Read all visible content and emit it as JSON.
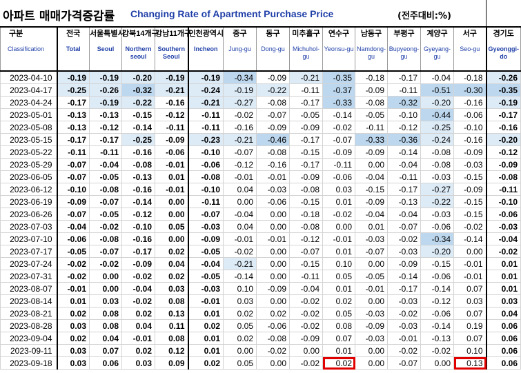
{
  "title": {
    "korean": "아파트 매매가격증감률",
    "english": "Changing Rate of Apartment Purchase Price",
    "unit": "(전주대비:%)"
  },
  "columns": [
    {
      "key": "date",
      "ko": "구분",
      "en": "Classification"
    },
    {
      "key": "total",
      "ko": "전국",
      "en": "Total"
    },
    {
      "key": "seoul",
      "ko": "서울특별시",
      "en": "Seoul"
    },
    {
      "key": "north",
      "ko": "강북14개구",
      "en": "Northern seoul"
    },
    {
      "key": "south",
      "ko": "강남11개구",
      "en": "Southern Seoul"
    },
    {
      "key": "incheon",
      "ko": "인천광역시",
      "en": "Incheon"
    },
    {
      "key": "jung",
      "ko": "중구",
      "en": "Jung-gu"
    },
    {
      "key": "dong",
      "ko": "동구",
      "en": "Dong-gu"
    },
    {
      "key": "michuhol",
      "ko": "미추홀구",
      "en": "Michuhol-gu"
    },
    {
      "key": "yeonsu",
      "ko": "연수구",
      "en": "Yeonsu-gu"
    },
    {
      "key": "namdong",
      "ko": "남동구",
      "en": "Namdong-gu"
    },
    {
      "key": "bupyeong",
      "ko": "부평구",
      "en": "Bupyeong-gu"
    },
    {
      "key": "gyeyang",
      "ko": "계양구",
      "en": "Gyeyang-gu"
    },
    {
      "key": "seo",
      "ko": "서구",
      "en": "Seo-gu"
    },
    {
      "key": "gyeonggi",
      "ko": "경기도",
      "en": "Gyeonggi-do"
    }
  ],
  "rows": [
    [
      "2023-04-10",
      "-0.19",
      "-0.19",
      "-0.20",
      "-0.19",
      "-0.19",
      "-0.34",
      "-0.09",
      "-0.21",
      "-0.35",
      "-0.18",
      "-0.17",
      "-0.04",
      "-0.18",
      "-0.26"
    ],
    [
      "2023-04-17",
      "-0.25",
      "-0.26",
      "-0.32",
      "-0.21",
      "-0.24",
      "-0.19",
      "-0.22",
      "-0.11",
      "-0.37",
      "-0.09",
      "-0.11",
      "-0.51",
      "-0.30",
      "-0.35"
    ],
    [
      "2023-04-24",
      "-0.17",
      "-0.19",
      "-0.22",
      "-0.16",
      "-0.21",
      "-0.27",
      "-0.08",
      "-0.17",
      "-0.33",
      "-0.08",
      "-0.32",
      "-0.20",
      "-0.16",
      "-0.19"
    ],
    [
      "2023-05-01",
      "-0.13",
      "-0.13",
      "-0.15",
      "-0.12",
      "-0.11",
      "-0.02",
      "-0.07",
      "-0.05",
      "-0.14",
      "-0.05",
      "-0.10",
      "-0.44",
      "-0.06",
      "-0.17"
    ],
    [
      "2023-05-08",
      "-0.13",
      "-0.12",
      "-0.14",
      "-0.11",
      "-0.11",
      "-0.16",
      "-0.09",
      "-0.09",
      "-0.02",
      "-0.11",
      "-0.12",
      "-0.25",
      "-0.10",
      "-0.16"
    ],
    [
      "2023-05-15",
      "-0.17",
      "-0.17",
      "-0.25",
      "-0.09",
      "-0.23",
      "-0.21",
      "-0.46",
      "-0.17",
      "-0.07",
      "-0.33",
      "-0.36",
      "-0.24",
      "-0.16",
      "-0.20"
    ],
    [
      "2023-05-22",
      "-0.11",
      "-0.11",
      "-0.16",
      "-0.06",
      "-0.10",
      "-0.07",
      "-0.08",
      "-0.15",
      "-0.09",
      "-0.09",
      "-0.14",
      "-0.08",
      "-0.09",
      "-0.12"
    ],
    [
      "2023-05-29",
      "-0.07",
      "-0.04",
      "-0.08",
      "-0.01",
      "-0.06",
      "-0.12",
      "-0.16",
      "-0.17",
      "-0.11",
      "0.00",
      "-0.04",
      "-0.08",
      "-0.03",
      "-0.09"
    ],
    [
      "2023-06-05",
      "-0.07",
      "-0.05",
      "-0.13",
      "0.01",
      "-0.08",
      "-0.01",
      "-0.01",
      "-0.09",
      "-0.06",
      "-0.04",
      "-0.11",
      "-0.03",
      "-0.15",
      "-0.08"
    ],
    [
      "2023-06-12",
      "-0.10",
      "-0.08",
      "-0.16",
      "-0.01",
      "-0.10",
      "0.04",
      "-0.03",
      "-0.08",
      "0.03",
      "-0.15",
      "-0.17",
      "-0.27",
      "-0.09",
      "-0.11"
    ],
    [
      "2023-06-19",
      "-0.09",
      "-0.07",
      "-0.14",
      "0.00",
      "-0.11",
      "0.00",
      "-0.06",
      "-0.15",
      "0.01",
      "-0.09",
      "-0.13",
      "-0.22",
      "-0.15",
      "-0.10"
    ],
    [
      "2023-06-26",
      "-0.07",
      "-0.05",
      "-0.12",
      "0.00",
      "-0.07",
      "-0.04",
      "0.00",
      "-0.18",
      "-0.02",
      "-0.04",
      "-0.04",
      "-0.03",
      "-0.15",
      "-0.06"
    ],
    [
      "2023-07-03",
      "-0.04",
      "-0.02",
      "-0.10",
      "0.05",
      "-0.03",
      "0.04",
      "0.00",
      "-0.08",
      "0.00",
      "0.01",
      "-0.07",
      "-0.06",
      "-0.02",
      "-0.03"
    ],
    [
      "2023-07-10",
      "-0.06",
      "-0.08",
      "-0.16",
      "0.00",
      "-0.09",
      "-0.01",
      "-0.01",
      "-0.12",
      "-0.01",
      "-0.03",
      "-0.02",
      "-0.34",
      "-0.14",
      "-0.04"
    ],
    [
      "2023-07-17",
      "-0.05",
      "-0.07",
      "-0.17",
      "0.02",
      "-0.05",
      "-0.02",
      "0.00",
      "-0.07",
      "0.01",
      "-0.07",
      "-0.03",
      "-0.20",
      "0.00",
      "-0.02"
    ],
    [
      "2023-07-24",
      "-0.02",
      "-0.02",
      "-0.09",
      "0.04",
      "-0.04",
      "-0.21",
      "0.00",
      "-0.15",
      "0.10",
      "0.00",
      "-0.09",
      "-0.15",
      "-0.01",
      "0.01"
    ],
    [
      "2023-07-31",
      "-0.02",
      "0.00",
      "-0.02",
      "0.02",
      "-0.05",
      "-0.14",
      "0.00",
      "-0.11",
      "0.05",
      "-0.05",
      "-0.14",
      "-0.06",
      "-0.01",
      "0.01"
    ],
    [
      "2023-08-07",
      "-0.01",
      "0.00",
      "-0.04",
      "0.03",
      "-0.03",
      "0.10",
      "-0.09",
      "-0.04",
      "0.01",
      "-0.01",
      "-0.17",
      "-0.14",
      "0.07",
      "0.01"
    ],
    [
      "2023-08-14",
      "0.01",
      "0.03",
      "-0.02",
      "0.08",
      "-0.01",
      "0.03",
      "0.00",
      "-0.02",
      "0.02",
      "0.00",
      "-0.03",
      "-0.12",
      "0.03",
      "0.03"
    ],
    [
      "2023-08-21",
      "0.02",
      "0.08",
      "0.02",
      "0.13",
      "0.01",
      "0.02",
      "0.02",
      "-0.02",
      "0.05",
      "-0.03",
      "-0.02",
      "-0.06",
      "0.07",
      "0.04"
    ],
    [
      "2023-08-28",
      "0.03",
      "0.08",
      "0.04",
      "0.11",
      "0.02",
      "0.05",
      "-0.06",
      "-0.02",
      "0.08",
      "-0.09",
      "-0.03",
      "-0.14",
      "0.19",
      "0.06"
    ],
    [
      "2023-09-04",
      "0.02",
      "0.04",
      "-0.01",
      "0.08",
      "0.01",
      "0.02",
      "-0.08",
      "-0.09",
      "0.07",
      "-0.03",
      "-0.01",
      "-0.13",
      "0.07",
      "0.06"
    ],
    [
      "2023-09-11",
      "0.03",
      "0.07",
      "0.02",
      "0.12",
      "0.01",
      "0.00",
      "-0.02",
      "0.00",
      "0.01",
      "0.00",
      "-0.02",
      "-0.02",
      "0.10",
      "0.06"
    ],
    [
      "2023-09-18",
      "0.03",
      "0.06",
      "0.03",
      "0.09",
      "0.02",
      "0.05",
      "0.00",
      "-0.02",
      "0.02",
      "0.00",
      "-0.07",
      "0.00",
      "0.13",
      "0.06"
    ]
  ],
  "highlights": {
    "red_box": [
      [
        23,
        9
      ],
      [
        23,
        13
      ]
    ],
    "shade_threshold_light": -0.19,
    "shade_threshold_strong": -0.3
  },
  "colors": {
    "header_text": "#1f3fa8",
    "shade_light": "#ddebf7",
    "shade_strong": "#bdd7ee",
    "box": "#e00000"
  }
}
